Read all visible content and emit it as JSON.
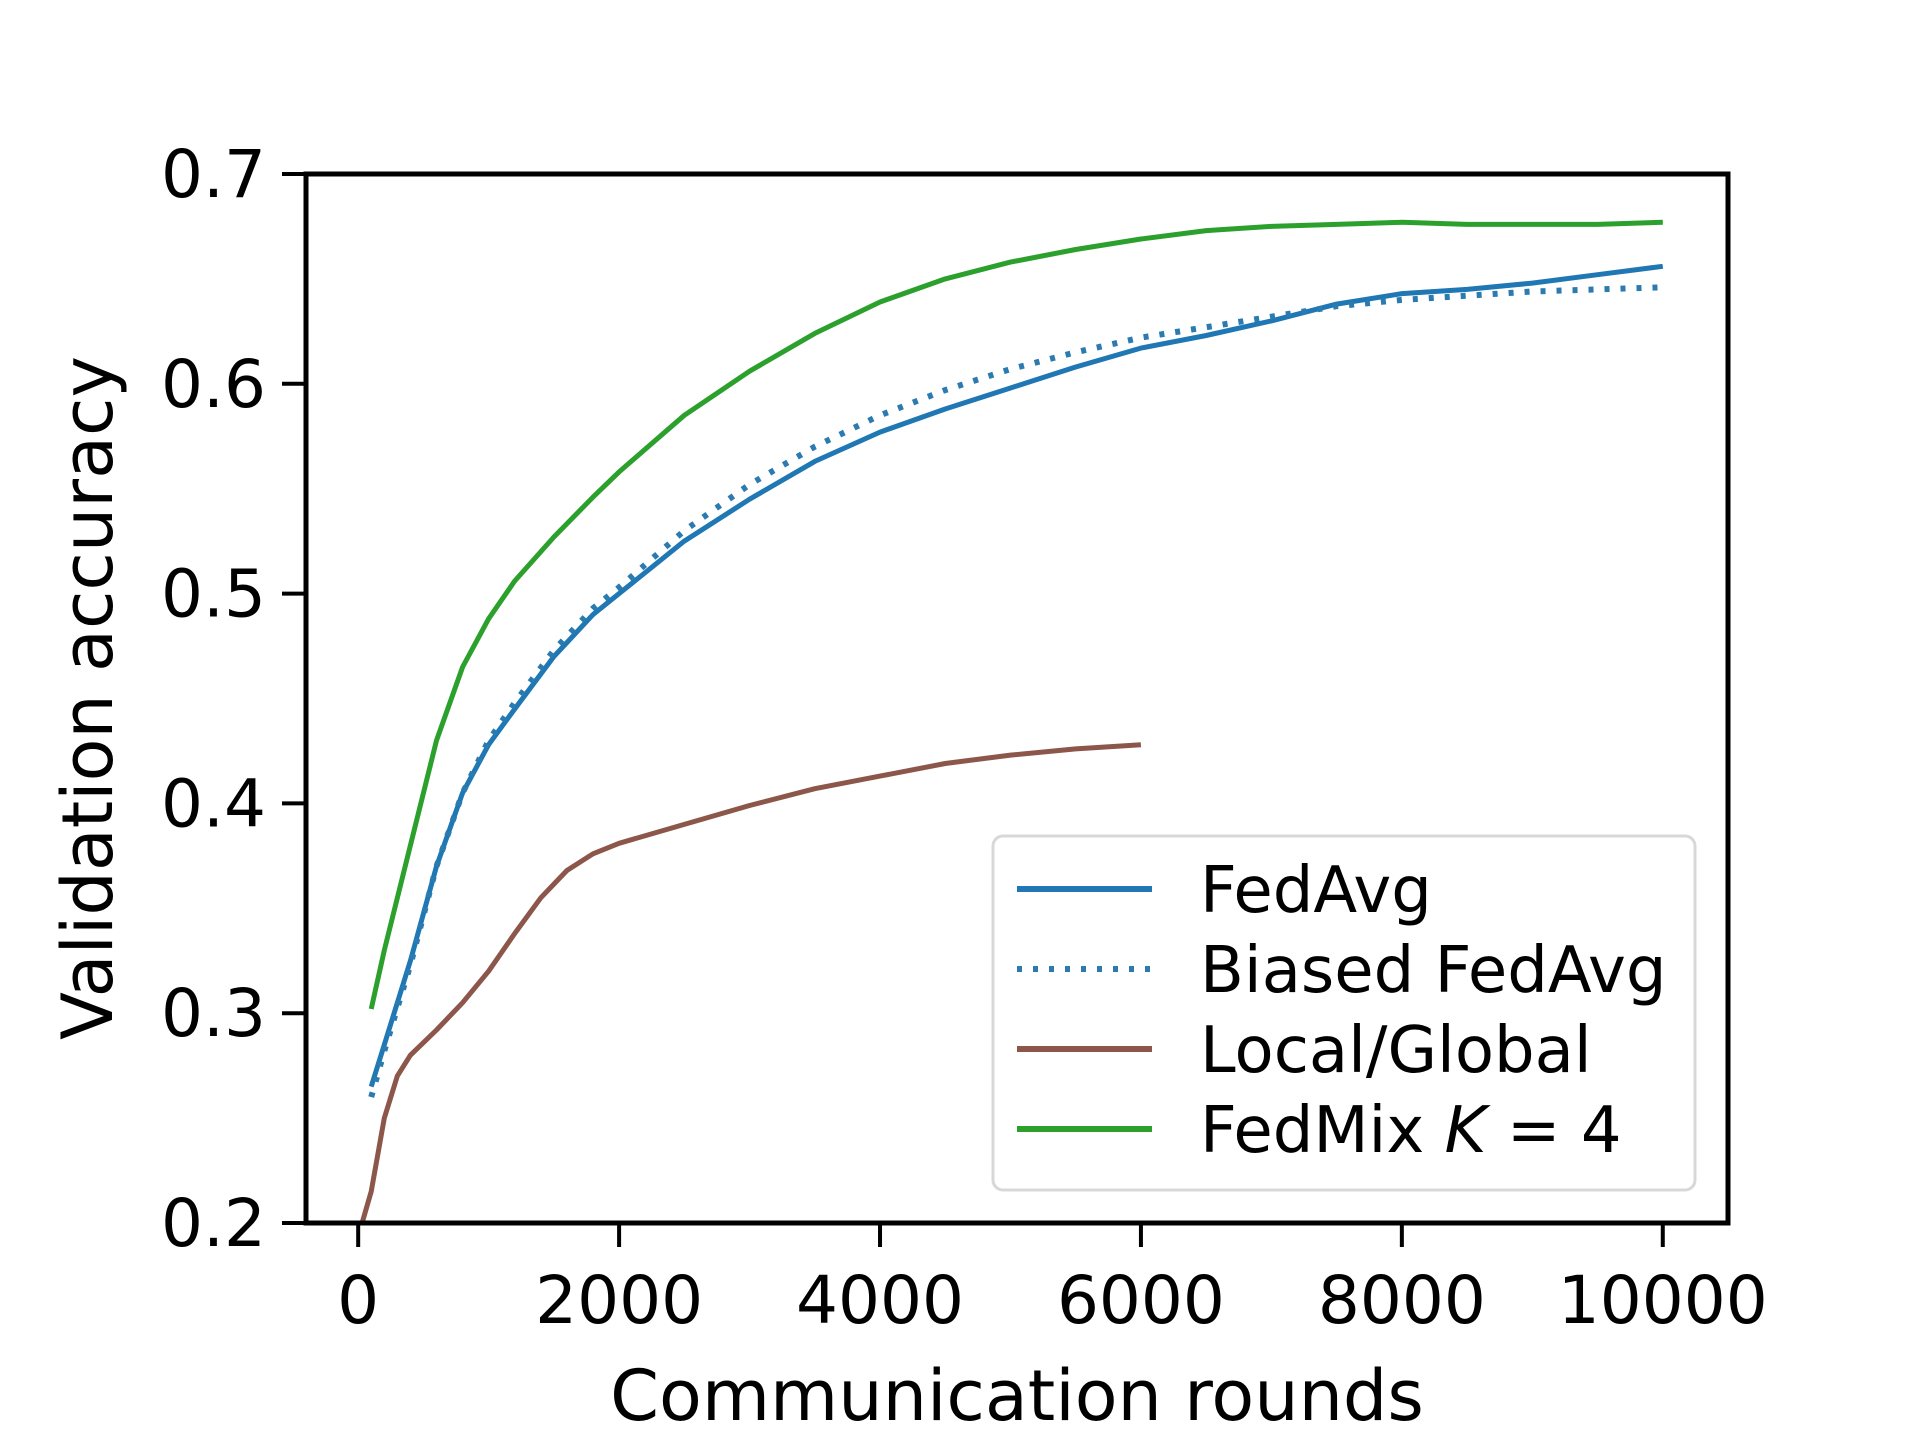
{
  "chart_data": {
    "type": "line",
    "title": "",
    "xlabel": "Communication rounds",
    "ylabel": "Validation accuracy",
    "xlim": [
      -400,
      10500
    ],
    "ylim": [
      0.2,
      0.7
    ],
    "xticks": [
      0,
      2000,
      4000,
      6000,
      8000,
      10000
    ],
    "xtick_labels": [
      "0",
      "2000",
      "4000",
      "6000",
      "8000",
      "10000"
    ],
    "yticks": [
      0.2,
      0.3,
      0.4,
      0.5,
      0.6,
      0.7
    ],
    "ytick_labels": [
      "0.2",
      "0.3",
      "0.4",
      "0.5",
      "0.6",
      "0.7"
    ],
    "grid": false,
    "legend_position": "lower-right",
    "series": [
      {
        "name": "FedAvg",
        "color": "#1f77b4",
        "style": "solid",
        "x": [
          100,
          200,
          400,
          600,
          800,
          1000,
          1200,
          1500,
          1800,
          2000,
          2500,
          3000,
          3500,
          4000,
          4500,
          5000,
          5500,
          6000,
          6500,
          7000,
          7500,
          8000,
          8500,
          9000,
          9500,
          10000
        ],
        "y": [
          0.265,
          0.285,
          0.325,
          0.37,
          0.405,
          0.428,
          0.445,
          0.47,
          0.49,
          0.5,
          0.525,
          0.545,
          0.563,
          0.577,
          0.588,
          0.598,
          0.608,
          0.617,
          0.623,
          0.63,
          0.638,
          0.643,
          0.645,
          0.648,
          0.652,
          0.656
        ]
      },
      {
        "name": "Biased FedAvg",
        "color": "#2b7bb0",
        "style": "dotted",
        "x": [
          100,
          200,
          400,
          600,
          800,
          1000,
          1200,
          1500,
          1800,
          2000,
          2500,
          3000,
          3500,
          4000,
          4500,
          5000,
          5500,
          6000,
          6500,
          7000,
          7500,
          8000,
          8500,
          9000,
          9500,
          10000
        ],
        "y": [
          0.26,
          0.282,
          0.323,
          0.37,
          0.405,
          0.43,
          0.448,
          0.473,
          0.493,
          0.503,
          0.53,
          0.552,
          0.57,
          0.585,
          0.597,
          0.607,
          0.615,
          0.622,
          0.627,
          0.632,
          0.637,
          0.64,
          0.642,
          0.644,
          0.645,
          0.646
        ]
      },
      {
        "name": "Local/Global",
        "color": "#8c564b",
        "style": "solid",
        "x": [
          30,
          100,
          200,
          300,
          400,
          600,
          800,
          1000,
          1200,
          1400,
          1600,
          1800,
          2000,
          2500,
          3000,
          3500,
          4000,
          4500,
          5000,
          5500,
          6000
        ],
        "y": [
          0.2,
          0.215,
          0.25,
          0.27,
          0.28,
          0.292,
          0.305,
          0.32,
          0.338,
          0.355,
          0.368,
          0.376,
          0.381,
          0.39,
          0.399,
          0.407,
          0.413,
          0.419,
          0.423,
          0.426,
          0.428
        ]
      },
      {
        "name": "FedMix K = 4",
        "color": "#2ca02c",
        "style": "solid",
        "x": [
          100,
          200,
          400,
          600,
          800,
          1000,
          1200,
          1500,
          1800,
          2000,
          2500,
          3000,
          3500,
          4000,
          4500,
          5000,
          5500,
          6000,
          6500,
          7000,
          7500,
          8000,
          8500,
          9000,
          9500,
          10000
        ],
        "y": [
          0.302,
          0.33,
          0.38,
          0.43,
          0.465,
          0.488,
          0.506,
          0.527,
          0.546,
          0.558,
          0.585,
          0.606,
          0.624,
          0.639,
          0.65,
          0.658,
          0.664,
          0.669,
          0.673,
          0.675,
          0.676,
          0.677,
          0.676,
          0.676,
          0.676,
          0.677
        ]
      }
    ]
  },
  "legend": {
    "fedavg": "FedAvg",
    "biased": "Biased FedAvg",
    "localglobal": "Local/Global",
    "fedmix_name": "FedMix ",
    "fedmix_k": "K",
    "fedmix_eq": " = 4"
  }
}
